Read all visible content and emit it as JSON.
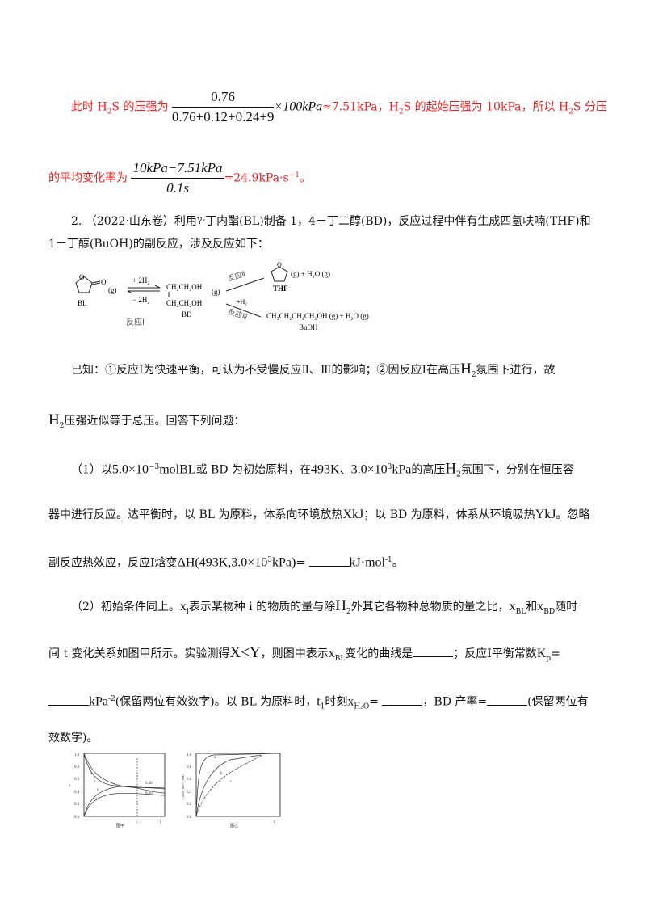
{
  "solution": {
    "l1_a": "此时 H",
    "l1_a_sub": "2",
    "l1_b": "S 的压强为",
    "frac1_num": "0.76",
    "frac1_den": "0.76+0.12+0.24+9",
    "l1_c": "×100kPa",
    "l1_d": "≈7.51kPa，H",
    "l1_e": "S 的起始压强为 10kPa，所以 H",
    "l1_f": "S 分压",
    "l2_a": "的平均变化率为",
    "frac2_num": "10kPa−7.51kPa",
    "frac2_den": "0.1s",
    "l2_b": "=24.9kPa·s",
    "l2_sup": "−1",
    "l2_c": "。"
  },
  "question": {
    "intro1": "2. （2022·山东卷）利用",
    "gamma": "γ-",
    "intro1b": "丁内酯(BL)制备 1，4－丁二醇(BD)，反应过程中伴有生成四氢呋喃(THF)和",
    "intro2": "1－丁醇(BuOH)的副反应，涉及反应如下：",
    "known1": "已知：①反应Ⅰ为快速平衡，可认为不受慢反应Ⅱ、Ⅲ的影响；②因反应Ⅰ在高压",
    "h2": "H",
    "two": "2",
    "known1b": "氛围下进行，故",
    "known2b": "压强近似等于总压。回答下列问题：",
    "p1_a": "（1）以",
    "p1_b": "5.0×10",
    "p1_sup": "−3",
    "p1_c": "molBL",
    "p1_d": "或 BD 为初始原料，在",
    "p1_e": "493K",
    "p1_f": "、",
    "p1_g": "3.0×10",
    "p1_sup2": "3",
    "p1_h": "kPa",
    "p1_i": "的高压",
    "p1_j": "氛围下，分别在恒压容",
    "p1_l2a": "器中进行反应。达平衡时，以 BL 为原料，体系向环境放热",
    "p1_X": "XkJ",
    "p1_l2b": "；以 BD 为原料，体系从环境吸热",
    "p1_Y": "YkJ",
    "p1_l2c": "。忽略",
    "p1_l3a": "副反应热效应，反应Ⅰ焓变",
    "p1_dh": "ΔH(493K,3.0×10",
    "p1_dh2": "kPa)",
    "p1_eq": "=",
    "p1_unit": "kJ·mol",
    "p1_unit_sup": "-1",
    "p1_end": "。",
    "p2_a": "（2）初始条件同上。",
    "xi": "x",
    "xi_sub": "i",
    "p2_b": "表示某物种 i 的物质的量与除",
    "p2_c": "外其它各物种总物质的量之比，",
    "bl_sub": "BL",
    "p2_d": "和",
    "bd_sub": "BD",
    "p2_e": "随时",
    "p2_l2a": "间 t 变化关系如图甲所示。实验测得",
    "p2_xy": "X<Y",
    "p2_l2b": "，则图中表示",
    "p2_l2c": "变化的曲线是",
    "p2_l2d": "；反应Ⅰ平衡常数",
    "kp": "K",
    "kp_sub": "p",
    "p2_l2e": "=",
    "p2_l3a": "kPa",
    "p2_l3sup": "-2",
    "p2_l3b": "(保留两位有效数字)。以 BL 为原料时，",
    "t1": "t",
    "t1_sub": "1",
    "p2_l3c": "时刻",
    "h2o_sub": "H₂O",
    "p2_l3d": "=",
    "p2_l3e": "，BD 产率=",
    "p2_l3f": "(保留两位有",
    "p2_l4": "效数字)。"
  },
  "scheme": {
    "bl": "BL",
    "g": "(g)",
    "plus2h2": "+ 2H₂",
    "minus2h2": "− 2H₂",
    "r1": "反应Ⅰ",
    "bd1": "CH₂CH₂OH",
    "bd2": "CH₂CH₂OH",
    "bd": "BD",
    "r2": "反应Ⅱ",
    "thf_prod": "(g)  +  H₂O (g)",
    "thf": "THF",
    "h2": "+H₂",
    "r3": "反应Ⅲ",
    "buoh_prod": "CH₃CH₂CH₂CH₂OH (g)  +  H₂O (g)",
    "buoh": "BuOH"
  },
  "figures": {
    "yticks": [
      "0.0",
      "0.2",
      "0.4",
      "0.6",
      "0.8",
      "1.0"
    ],
    "jia": {
      "caption": "图甲",
      "ylabel": "x",
      "xlabel": "t",
      "t1": "t₁",
      "a": "a",
      "b": "b",
      "c": "c",
      "d": "d",
      "v1": "0.48",
      "v2": "0.36"
    },
    "yi": {
      "caption": "图乙",
      "xlabel": "t",
      "ylabel": "x_BD/(x_BD+x_THF)",
      "a": "a",
      "b": "b",
      "c": "c"
    }
  }
}
